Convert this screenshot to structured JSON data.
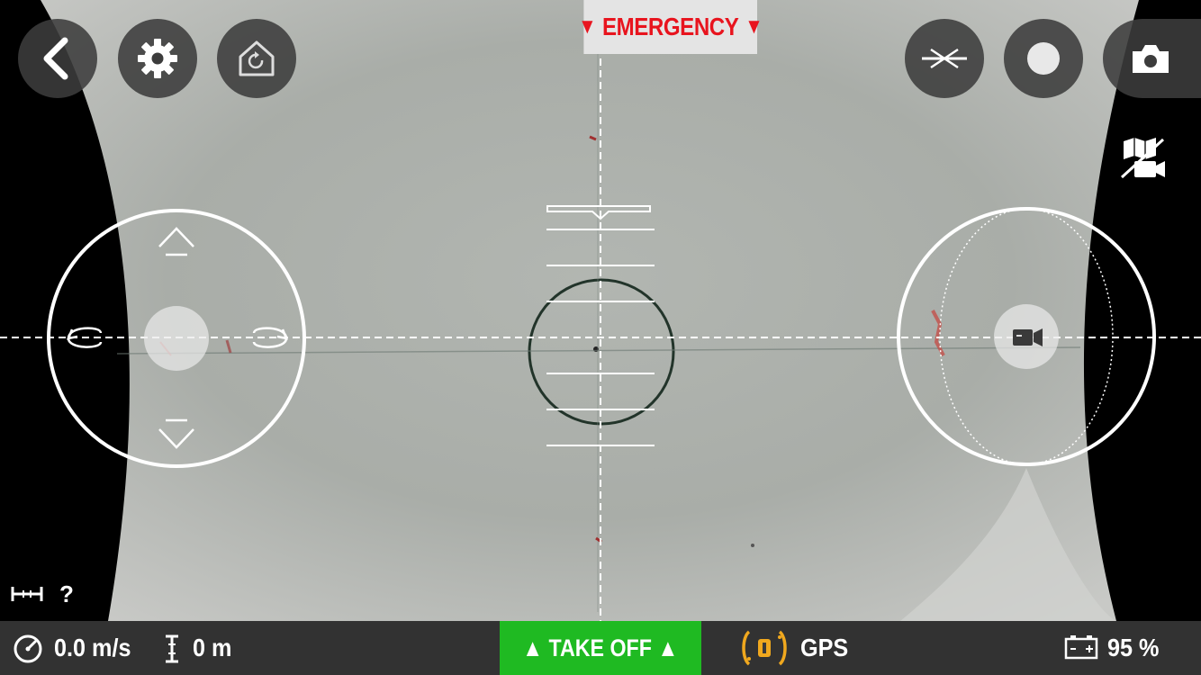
{
  "header": {
    "emergency_label": "EMERGENCY",
    "emergency_color": "#e8141e",
    "icons": {
      "back": "chevron-left-icon",
      "settings": "gear-icon",
      "return_home": "home-return-icon",
      "flat_trim": "flat-trim-icon",
      "record": "record-icon",
      "photo": "camera-icon",
      "map_video_toggle": "map-video-switch-icon"
    }
  },
  "controls": {
    "left_joystick_icons": [
      "up-arrow-icon",
      "down-arrow-icon",
      "rotate-left-icon",
      "rotate-right-icon"
    ],
    "right_joystick_icon": "video-camera-icon"
  },
  "status": {
    "distance_value": "?",
    "speed_value": "0.0 m/s",
    "altitude_value": "0 m",
    "takeoff_label": "TAKE OFF",
    "takeoff_color": "#1fba22",
    "gps_label": "GPS",
    "gps_icon_color": "#f0a81e",
    "battery_value": "95 %"
  }
}
